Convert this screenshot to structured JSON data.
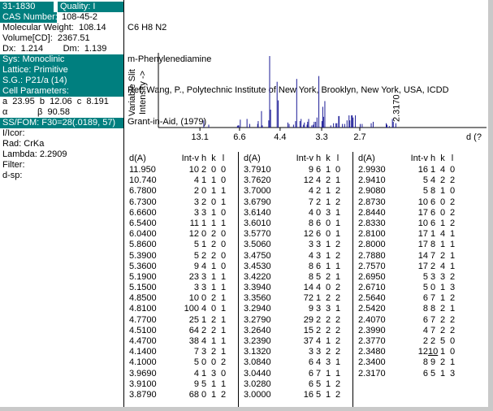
{
  "colors": {
    "teal": "#007f7f",
    "peak": "#1a1a96",
    "axis": "#000000"
  },
  "left_panel": {
    "rows": [
      {
        "style": "split",
        "cells": [
          "31-1830",
          "Quality: I"
        ]
      },
      {
        "style": "pair",
        "label": "CAS Number:",
        "value": "108-45-2"
      },
      {
        "style": "plain",
        "text": "Molecular Weight:  108.14"
      },
      {
        "style": "plain",
        "text": "Volume[CD]:  2367.51"
      },
      {
        "style": "plain",
        "text": "Dx:  1.214        Dm:  1.139"
      },
      {
        "style": "teal",
        "text": "Sys: Monoclinic"
      },
      {
        "style": "teal",
        "text": "Lattice: Primitive"
      },
      {
        "style": "teal",
        "text": "S.G.: P21/a (14)"
      },
      {
        "style": "teal",
        "text": "Cell Parameters:"
      },
      {
        "style": "plain",
        "text": "a  23.95  b  12.06  c  8.191"
      },
      {
        "style": "plain",
        "text": "α            β  90.58"
      },
      {
        "style": "teal",
        "text": "SS/FOM: F30=28(.0189, 57)"
      },
      {
        "style": "plain",
        "text": "I/Icor:"
      },
      {
        "style": "plain",
        "text": "Rad: CrKa"
      },
      {
        "style": "plain",
        "text": "Lambda: 2.2909"
      },
      {
        "style": "plain",
        "text": "Filter:"
      },
      {
        "style": "plain",
        "text": "d-sp:"
      }
    ]
  },
  "header": {
    "formula": "C6 H8 N2",
    "name": "m-Phenylenediamine",
    "ref_line1": "Ref: Wang, P., Polytechnic Institute of New York, Brooklyn, New York, USA, ICDD",
    "ref_line2": "Grant-in-Aid, (1979)"
  },
  "chart_data": {
    "type": "bar",
    "subtype": "powder-diffraction-stick-pattern",
    "title": "",
    "ylabel_lines": [
      "Variable Slit",
      "Intensity ->"
    ],
    "xlabel": "d (?",
    "x_tick_labels": [
      "13.1",
      "6.6",
      "4.4",
      "3.3",
      "2.7"
    ],
    "x_axis_note": "axis linear in 2-theta for lambda 2.2909; tick labels are d spacings",
    "wavelength_A": 2.2909,
    "ylim": [
      0,
      100
    ],
    "annotation": "2.3170",
    "annotation_d_A": 2.317,
    "peaks_d_A": [
      11.95,
      10.74,
      6.78,
      6.73,
      6.66,
      6.54,
      6.04,
      5.86,
      5.39,
      5.36,
      5.19,
      5.15,
      4.85,
      4.81,
      4.77,
      4.51,
      4.47,
      4.14,
      4.1,
      3.969,
      3.91,
      3.879,
      3.791,
      3.762,
      3.7,
      3.679,
      3.614,
      3.601,
      3.577,
      3.506,
      3.475,
      3.453,
      3.422,
      3.394,
      3.356,
      3.294,
      3.279,
      3.264,
      3.239,
      3.132,
      3.084,
      3.044,
      3.028,
      3.0,
      2.993,
      2.941,
      2.908,
      2.873,
      2.844,
      2.833,
      2.81,
      2.8,
      2.788,
      2.757,
      2.695,
      2.671,
      2.564,
      2.542,
      2.407,
      2.399,
      2.377,
      2.348,
      2.34,
      2.317
    ],
    "peaks_intensity": [
      10,
      4,
      2,
      3,
      3,
      11,
      12,
      5,
      5,
      9,
      23,
      3,
      10,
      100,
      25,
      64,
      38,
      7,
      5,
      4,
      9,
      68,
      9,
      12,
      4,
      7,
      4,
      8,
      12,
      3,
      4,
      8,
      8,
      14,
      72,
      9,
      29,
      15,
      37,
      3,
      6,
      6,
      6,
      16,
      16,
      5,
      5,
      10,
      17,
      10,
      17,
      17,
      14,
      17,
      5,
      5,
      6,
      8,
      6,
      4,
      2,
      12,
      8,
      6
    ]
  },
  "table": {
    "headers": [
      "d(A)",
      "Int-v",
      "h",
      "k",
      "l"
    ],
    "groups": [
      [
        {
          "d": "11.950",
          "i": "10",
          "h": "2",
          "k": "0",
          "l": "0"
        },
        {
          "d": "10.740",
          "i": "4",
          "h": "1",
          "k": "1",
          "l": "0"
        },
        {
          "d": "6.7800",
          "i": "2",
          "h": "0",
          "k": "1",
          "l": "1"
        },
        {
          "d": "6.7300",
          "i": "3",
          "h": "2",
          "k": "0",
          "l": "1"
        },
        {
          "d": "6.6600",
          "i": "3",
          "h": "3",
          "k": "1",
          "l": "0"
        },
        {
          "d": "6.5400",
          "i": "11",
          "h": "1",
          "k": "1",
          "l": "1"
        },
        {
          "d": "6.0400",
          "i": "12",
          "h": "0",
          "k": "2",
          "l": "0"
        },
        {
          "d": "5.8600",
          "i": "5",
          "h": "1",
          "k": "2",
          "l": "0"
        },
        {
          "d": "5.3900",
          "i": "5",
          "h": "2",
          "k": "2",
          "l": "0"
        },
        {
          "d": "5.3600",
          "i": "9",
          "h": "4",
          "k": "1",
          "l": "0"
        },
        {
          "d": "5.1900",
          "i": "23",
          "h": "3",
          "k": "1",
          "l": "1"
        },
        {
          "d": "5.1500",
          "i": "3",
          "h": "3",
          "k": "1",
          "l": "1"
        },
        {
          "d": "4.8500",
          "i": "10",
          "h": "0",
          "k": "2",
          "l": "1"
        },
        {
          "d": "4.8100",
          "i": "100",
          "h": "4",
          "k": "0",
          "l": "1"
        },
        {
          "d": "4.7700",
          "i": "25",
          "h": "1",
          "k": "2",
          "l": "1"
        },
        {
          "d": "4.5100",
          "i": "64",
          "h": "2",
          "k": "2",
          "l": "1"
        },
        {
          "d": "4.4700",
          "i": "38",
          "h": "4",
          "k": "1",
          "l": "1"
        },
        {
          "d": "4.1400",
          "i": "7",
          "h": "3",
          "k": "2",
          "l": "1"
        },
        {
          "d": "4.1000",
          "i": "5",
          "h": "0",
          "k": "0",
          "l": "2"
        },
        {
          "d": "3.9690",
          "i": "4",
          "h": "1",
          "k": "3",
          "l": "0"
        },
        {
          "d": "3.9100",
          "i": "9",
          "h": "5",
          "k": "1",
          "l": "1"
        },
        {
          "d": "3.8790",
          "i": "68",
          "h": "0",
          "k": "1",
          "l": "2"
        }
      ],
      [
        {
          "d": "3.7910",
          "i": "9",
          "h": "6",
          "k": "1",
          "l": "0"
        },
        {
          "d": "3.7620",
          "i": "12",
          "h": "4",
          "k": "2",
          "l": "1"
        },
        {
          "d": "3.7000",
          "i": "4",
          "h": "2",
          "k": "1",
          "l": "2"
        },
        {
          "d": "3.6790",
          "i": "7",
          "h": "2",
          "k": "1",
          "l": "2"
        },
        {
          "d": "3.6140",
          "i": "4",
          "h": "0",
          "k": "3",
          "l": "1"
        },
        {
          "d": "3.6010",
          "i": "8",
          "h": "6",
          "k": "0",
          "l": "1"
        },
        {
          "d": "3.5770",
          "i": "12",
          "h": "6",
          "k": "0",
          "l": "1"
        },
        {
          "d": "3.5060",
          "i": "3",
          "h": "3",
          "k": "1",
          "l": "2"
        },
        {
          "d": "3.4750",
          "i": "4",
          "h": "3",
          "k": "1",
          "l": "2"
        },
        {
          "d": "3.4530",
          "i": "8",
          "h": "6",
          "k": "1",
          "l": "1"
        },
        {
          "d": "3.4220",
          "i": "8",
          "h": "5",
          "k": "2",
          "l": "1"
        },
        {
          "d": "3.3940",
          "i": "14",
          "h": "4",
          "k": "0",
          "l": "2"
        },
        {
          "d": "3.3560",
          "i": "72",
          "h": "1",
          "k": "2",
          "l": "2"
        },
        {
          "d": "3.2940",
          "i": "9",
          "h": "3",
          "k": "3",
          "l": "1"
        },
        {
          "d": "3.2790",
          "i": "29",
          "h": "2",
          "k": "2",
          "l": "2"
        },
        {
          "d": "3.2640",
          "i": "15",
          "h": "2",
          "k": "2",
          "l": "2"
        },
        {
          "d": "3.2390",
          "i": "37",
          "h": "4",
          "k": "1",
          "l": "2"
        },
        {
          "d": "3.1320",
          "i": "3",
          "h": "3",
          "k": "2",
          "l": "2"
        },
        {
          "d": "3.0840",
          "i": "6",
          "h": "4",
          "k": "3",
          "l": "1"
        },
        {
          "d": "3.0440",
          "i": "6",
          "h": "7",
          "k": "1",
          "l": "1"
        },
        {
          "d": "3.0280",
          "i": "6",
          "h": "5",
          "k": "1",
          "l": "2"
        },
        {
          "d": "3.0000",
          "i": "16",
          "h": "5",
          "k": "1",
          "l": "2"
        }
      ],
      [
        {
          "d": "2.9930",
          "i": "16",
          "h": "1",
          "k": "4",
          "l": "0"
        },
        {
          "d": "2.9410",
          "i": "5",
          "h": "4",
          "k": "2",
          "l": "2"
        },
        {
          "d": "2.9080",
          "i": "5",
          "h": "8",
          "k": "1",
          "l": "0"
        },
        {
          "d": "2.8730",
          "i": "10",
          "h": "6",
          "k": "0",
          "l": "2"
        },
        {
          "d": "2.8440",
          "i": "17",
          "h": "6",
          "k": "0",
          "l": "2"
        },
        {
          "d": "2.8330",
          "i": "10",
          "h": "6",
          "k": "1",
          "l": "2"
        },
        {
          "d": "2.8100",
          "i": "17",
          "h": "1",
          "k": "4",
          "l": "1"
        },
        {
          "d": "2.8000",
          "i": "17",
          "h": "8",
          "k": "1",
          "l": "1"
        },
        {
          "d": "2.7880",
          "i": "14",
          "h": "7",
          "k": "2",
          "l": "1"
        },
        {
          "d": "2.7570",
          "i": "17",
          "h": "2",
          "k": "4",
          "l": "1"
        },
        {
          "d": "2.6950",
          "i": "5",
          "h": "3",
          "k": "3",
          "l": "2"
        },
        {
          "d": "2.6710",
          "i": "5",
          "h": "0",
          "k": "1",
          "l": "3"
        },
        {
          "d": "2.5640",
          "i": "6",
          "h": "7",
          "k": "1",
          "l": "2"
        },
        {
          "d": "2.5420",
          "i": "8",
          "h": "8",
          "k": "2",
          "l": "1"
        },
        {
          "d": "2.4070",
          "i": "6",
          "h": "7",
          "k": "2",
          "l": "2"
        },
        {
          "d": "2.3990",
          "i": "4",
          "h": "7",
          "k": "2",
          "l": "2"
        },
        {
          "d": "2.3770",
          "i": "2",
          "h": "2",
          "k": "5",
          "l": "0"
        },
        {
          "d": "2.3480",
          "i": "12",
          "h": "10",
          "k": "1",
          "l": "0",
          "u": true
        },
        {
          "d": "2.3400",
          "i": "8",
          "h": "9",
          "k": "2",
          "l": "1"
        },
        {
          "d": "2.3170",
          "i": "6",
          "h": "5",
          "k": "1",
          "l": "3"
        }
      ]
    ]
  }
}
